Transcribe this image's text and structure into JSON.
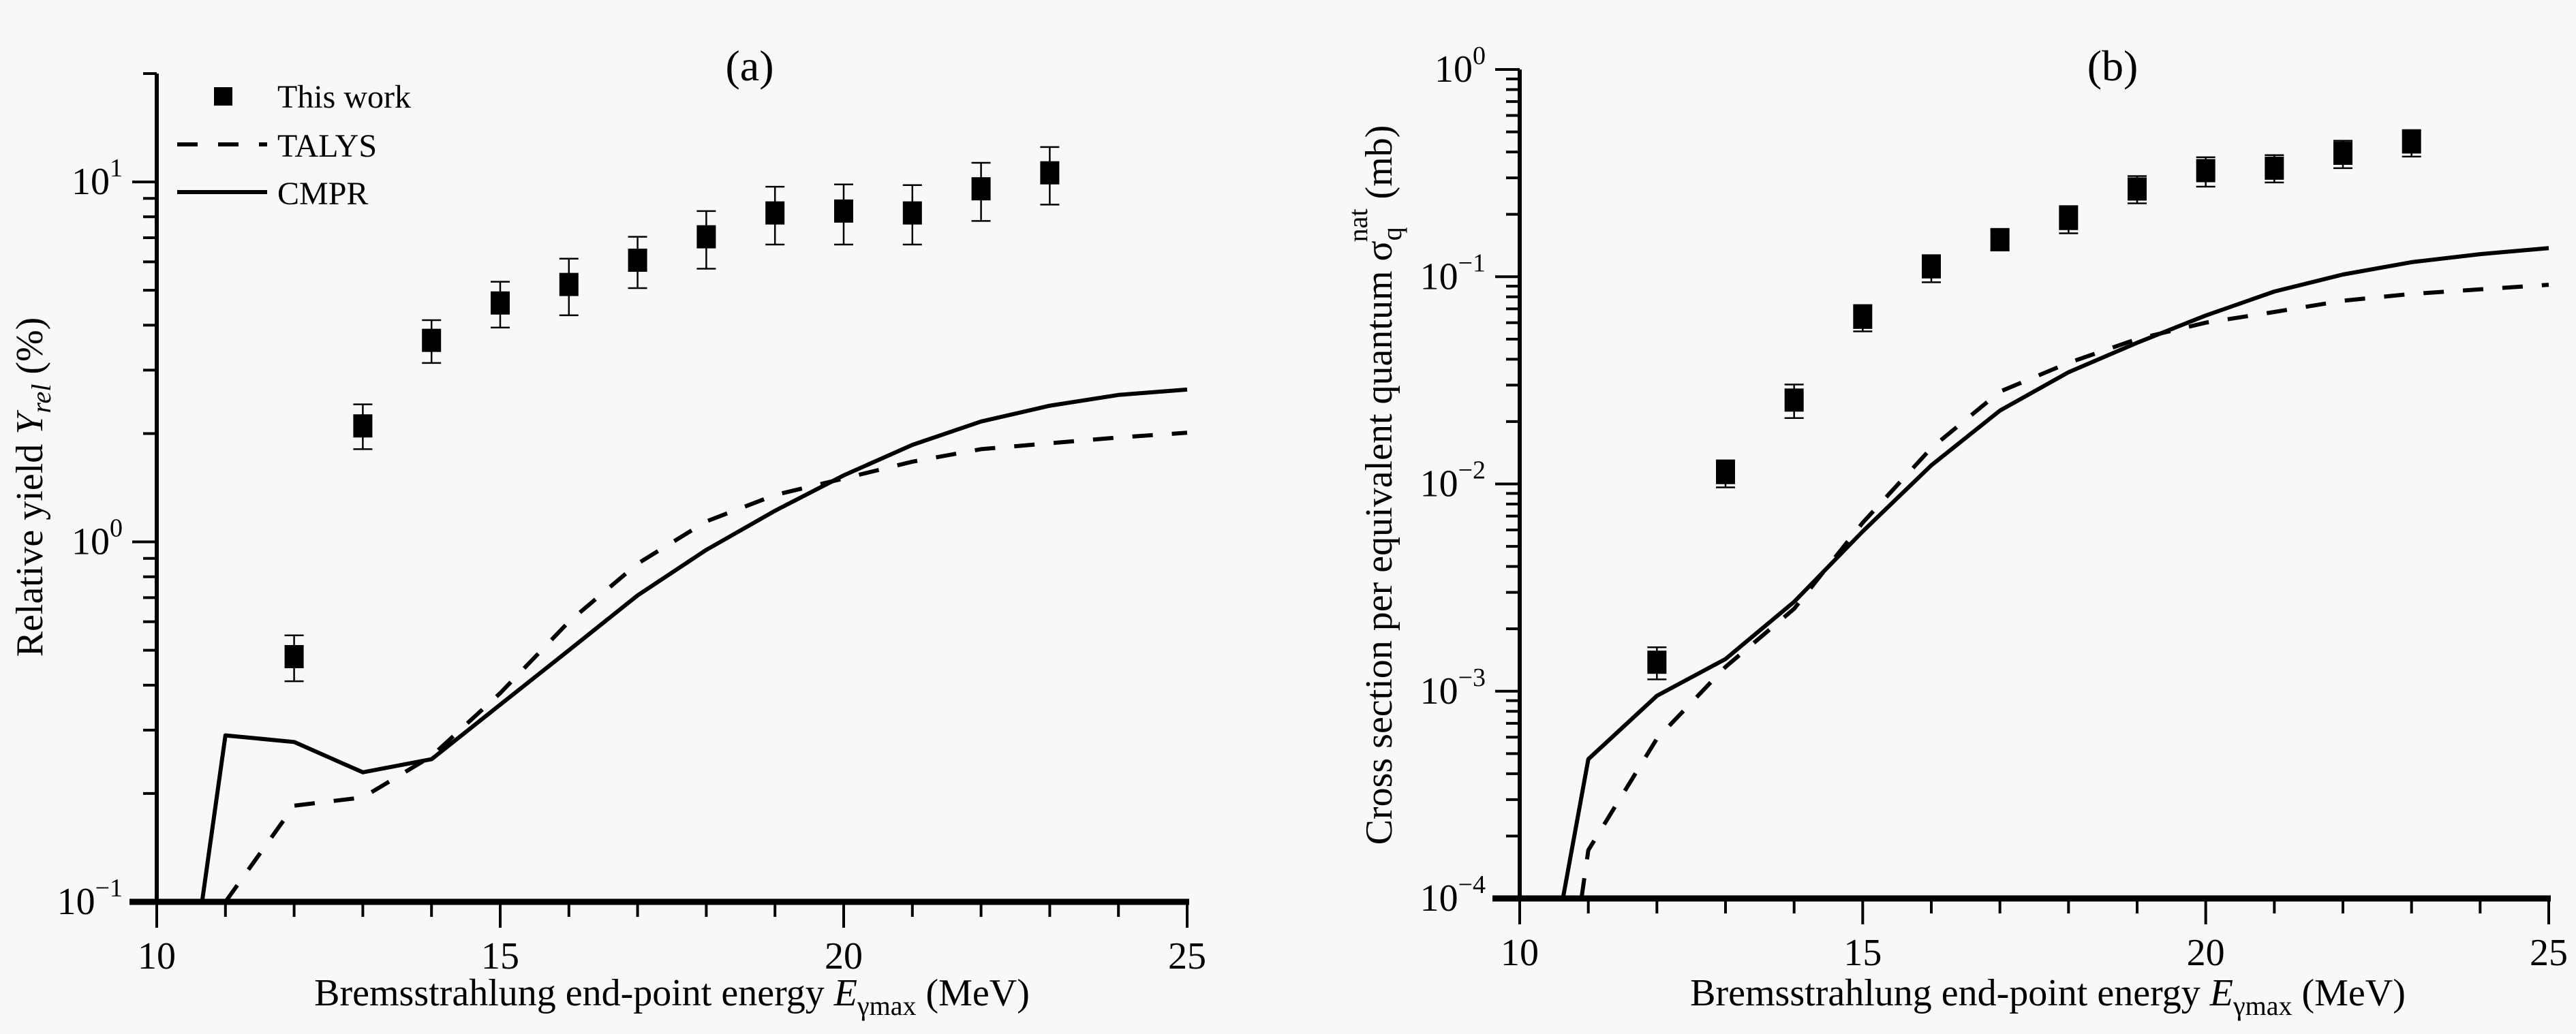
{
  "figure": {
    "background": "#f8f8f8",
    "ink": "#000000"
  },
  "chart_data": [
    {
      "id": "a",
      "type": "scatter",
      "title": "(a)",
      "xlabel": "Bremsstrahlung end-point energy E_γmax (MeV)",
      "xlabel_parts": {
        "pre": "Bremsstrahlung end-point energy ",
        "var": "E",
        "sub": "γmax",
        "post": " (MeV)"
      },
      "ylabel": "Relative yield Y_rel (%)",
      "ylabel_parts": {
        "pre": "Relative yield ",
        "var": "Y",
        "sub": "rel",
        "post": " (%)"
      },
      "yscale": "log",
      "xlim": [
        10,
        25
      ],
      "ylim": [
        0.1,
        20
      ],
      "xticks": [
        10,
        15,
        20,
        25
      ],
      "xtick_labels": [
        "10",
        "15",
        "20",
        "25"
      ],
      "yticks": [
        0.1,
        1,
        10
      ],
      "ytick_labels": [
        {
          "base": "10",
          "exp": "−1"
        },
        {
          "base": "10",
          "exp": "0"
        },
        {
          "base": "10",
          "exp": "1"
        }
      ],
      "grid": false,
      "legend_position": "top-left",
      "legend": [
        {
          "label": "This work",
          "style": "square-marker"
        },
        {
          "label": "TALYS",
          "style": "dashed-line"
        },
        {
          "label": "CMPR",
          "style": "solid-line"
        }
      ],
      "series": [
        {
          "name": "This work",
          "kind": "points",
          "x": [
            12,
            13,
            14,
            15,
            16,
            17,
            18,
            19,
            20,
            21,
            22,
            23
          ],
          "y": [
            0.48,
            2.1,
            3.63,
            4.61,
            5.19,
            6.06,
            7.04,
            8.2,
            8.3,
            8.2,
            9.57,
            10.6
          ],
          "y_err_low": [
            0.41,
            1.81,
            3.14,
            3.94,
            4.26,
            5.07,
            5.74,
            6.7,
            6.7,
            6.7,
            7.79,
            8.65
          ],
          "y_err_high": [
            0.55,
            2.41,
            4.13,
            5.28,
            6.12,
            7.04,
            8.3,
            9.7,
            9.84,
            9.8,
            11.3,
            12.5
          ]
        },
        {
          "name": "TALYS",
          "kind": "dashed",
          "x": [
            11.0,
            12,
            13,
            14,
            15,
            16,
            17,
            18,
            19,
            20,
            21,
            22,
            23,
            24,
            25
          ],
          "y": [
            0.1,
            0.185,
            0.195,
            0.254,
            0.38,
            0.6,
            0.87,
            1.14,
            1.35,
            1.5,
            1.67,
            1.81,
            1.88,
            1.95,
            2.01
          ]
        },
        {
          "name": "CMPR",
          "kind": "solid",
          "x": [
            10.66,
            11,
            12,
            13,
            14,
            15,
            16,
            17,
            18,
            19,
            20,
            21,
            22,
            23,
            24,
            25
          ],
          "y": [
            0.1,
            0.29,
            0.278,
            0.229,
            0.249,
            0.353,
            0.5,
            0.71,
            0.95,
            1.22,
            1.53,
            1.86,
            2.16,
            2.39,
            2.56,
            2.65
          ]
        }
      ]
    },
    {
      "id": "b",
      "type": "scatter",
      "title": "(b)",
      "xlabel": "Bremsstrahlung end-point energy E_γmax (MeV)",
      "xlabel_parts": {
        "pre": "Bremsstrahlung end-point energy ",
        "var": "E",
        "sub": "γmax",
        "post": " (MeV)"
      },
      "ylabel": "Cross section per equivalent quantum σ_q^nat (mb)",
      "ylabel_parts": {
        "pre": "Cross section per equivalent quantum ",
        "var": "σ",
        "sub": "q",
        "sup": "nat",
        "post": " (mb)"
      },
      "yscale": "log",
      "xlim": [
        10,
        25
      ],
      "ylim": [
        0.0001,
        1
      ],
      "xticks": [
        10,
        15,
        20,
        25
      ],
      "xtick_labels": [
        "10",
        "15",
        "20",
        "25"
      ],
      "yticks": [
        0.0001,
        0.001,
        0.01,
        0.1,
        1
      ],
      "ytick_labels": [
        {
          "base": "10",
          "exp": "−4"
        },
        {
          "base": "10",
          "exp": "−3"
        },
        {
          "base": "10",
          "exp": "−2"
        },
        {
          "base": "10",
          "exp": "−1"
        },
        {
          "base": "10",
          "exp": "0"
        }
      ],
      "grid": false,
      "legend_position": "none",
      "series": [
        {
          "name": "This work",
          "kind": "points",
          "x": [
            12,
            13,
            14,
            15,
            16,
            17,
            18,
            19,
            20,
            21,
            22,
            23
          ],
          "y": [
            0.00138,
            0.01135,
            0.0254,
            0.0637,
            0.1116,
            0.151,
            0.191,
            0.265,
            0.325,
            0.334,
            0.394,
            0.447
          ],
          "y_err_low": [
            0.00114,
            0.00963,
            0.0208,
            0.0545,
            0.094,
            0.134,
            0.162,
            0.226,
            0.272,
            0.285,
            0.334,
            0.38
          ],
          "y_err_high": [
            0.00163,
            0.013,
            0.0302,
            0.073,
            0.127,
            0.169,
            0.219,
            0.306,
            0.377,
            0.386,
            0.453,
            0.51
          ]
        },
        {
          "name": "TALYS",
          "kind": "dashed",
          "x": [
            10.9,
            11,
            12,
            13,
            14,
            15,
            16,
            17,
            18,
            19,
            20,
            21,
            22,
            23,
            24,
            25
          ],
          "y": [
            0.0001,
            0.000171,
            0.00059,
            0.00131,
            0.0025,
            0.0065,
            0.0149,
            0.0279,
            0.0384,
            0.05,
            0.06,
            0.0676,
            0.0766,
            0.0826,
            0.0869,
            0.0914
          ]
        },
        {
          "name": "CMPR",
          "kind": "solid",
          "x": [
            10.63,
            11,
            12,
            13,
            14,
            15,
            16,
            17,
            18,
            19,
            20,
            21,
            22,
            23,
            24,
            25
          ],
          "y": [
            0.0001,
            0.00047,
            0.00095,
            0.00143,
            0.0027,
            0.0059,
            0.0123,
            0.0226,
            0.0346,
            0.048,
            0.065,
            0.0848,
            0.1025,
            0.1175,
            0.1285,
            0.1375
          ]
        }
      ]
    }
  ]
}
